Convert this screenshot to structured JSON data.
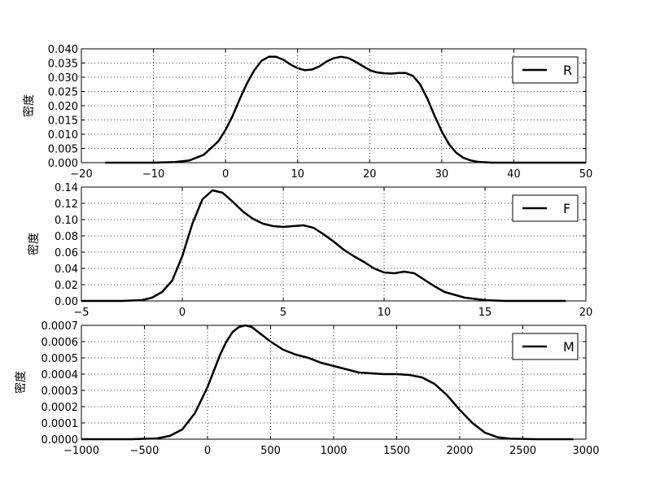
{
  "chart_data": [
    {
      "type": "line",
      "ylabel": "密度",
      "xlim": [
        -20,
        50
      ],
      "ylim": [
        0,
        0.04
      ],
      "xticks": [
        "−20",
        "−10",
        "0",
        "10",
        "20",
        "30",
        "40",
        "50"
      ],
      "yticks": [
        "0.000",
        "0.005",
        "0.010",
        "0.015",
        "0.020",
        "0.025",
        "0.030",
        "0.035",
        "0.040"
      ],
      "grid": true,
      "legend_position": "top-right",
      "series": [
        {
          "name": "R",
          "color": "#000000",
          "x": [
            -16.7,
            -10,
            -7,
            -5,
            -3,
            -1,
            0,
            1,
            2,
            3,
            4,
            5,
            6,
            7,
            8,
            9,
            10,
            11,
            12,
            13,
            14,
            15,
            16,
            17,
            18,
            19,
            20,
            21,
            22,
            23,
            24,
            25,
            26,
            27,
            28,
            29,
            30,
            31,
            32,
            33,
            34,
            35,
            37,
            40,
            45,
            50
          ],
          "y": [
            0.0,
            0.0,
            0.0002,
            0.0008,
            0.0028,
            0.0075,
            0.0115,
            0.0165,
            0.0225,
            0.028,
            0.0325,
            0.0358,
            0.0372,
            0.0372,
            0.0362,
            0.0345,
            0.0332,
            0.0325,
            0.0327,
            0.0338,
            0.0355,
            0.0367,
            0.0372,
            0.0368,
            0.0355,
            0.034,
            0.0325,
            0.0317,
            0.0314,
            0.0313,
            0.0315,
            0.0315,
            0.0305,
            0.0275,
            0.0225,
            0.0165,
            0.011,
            0.0065,
            0.0035,
            0.0017,
            0.0008,
            0.0003,
            0.0,
            0.0,
            0.0,
            0.0
          ]
        }
      ]
    },
    {
      "type": "line",
      "ylabel": "密度",
      "xlim": [
        -5,
        20
      ],
      "ylim": [
        0,
        0.14
      ],
      "xticks": [
        "−5",
        "0",
        "5",
        "10",
        "15",
        "20"
      ],
      "yticks": [
        "0.00",
        "0.02",
        "0.04",
        "0.06",
        "0.08",
        "0.10",
        "0.12",
        "0.14"
      ],
      "grid": true,
      "legend_position": "top-right",
      "series": [
        {
          "name": "F",
          "color": "#000000",
          "x": [
            -5,
            -3,
            -2,
            -1.5,
            -1,
            -0.5,
            0,
            0.5,
            1,
            1.5,
            2,
            2.5,
            3,
            3.5,
            4,
            4.5,
            5,
            5.5,
            6,
            6.5,
            7,
            7.5,
            8,
            8.5,
            9,
            9.5,
            10,
            10.5,
            11,
            11.5,
            12,
            12.5,
            13,
            14,
            15,
            16,
            18,
            19
          ],
          "y": [
            0.0,
            0.0,
            0.001,
            0.004,
            0.011,
            0.025,
            0.055,
            0.095,
            0.125,
            0.136,
            0.133,
            0.122,
            0.11,
            0.101,
            0.095,
            0.092,
            0.091,
            0.092,
            0.093,
            0.09,
            0.082,
            0.073,
            0.063,
            0.055,
            0.048,
            0.04,
            0.035,
            0.034,
            0.036,
            0.034,
            0.026,
            0.018,
            0.011,
            0.004,
            0.001,
            0.0,
            0.0,
            0.0
          ]
        }
      ]
    },
    {
      "type": "line",
      "ylabel": "密度",
      "xlim": [
        -1000,
        3000
      ],
      "ylim": [
        0,
        0.0007
      ],
      "xticks": [
        "−1000",
        "−500",
        "0",
        "500",
        "1000",
        "1500",
        "2000",
        "2500",
        "3000"
      ],
      "yticks": [
        "0.0000",
        "0.0001",
        "0.0002",
        "0.0003",
        "0.0004",
        "0.0005",
        "0.0006",
        "0.0007"
      ],
      "grid": true,
      "legend_position": "top-right",
      "series": [
        {
          "name": "M",
          "color": "#000000",
          "x": [
            -1000,
            -600,
            -400,
            -300,
            -200,
            -100,
            0,
            50,
            100,
            150,
            200,
            250,
            300,
            350,
            400,
            500,
            600,
            700,
            800,
            900,
            1000,
            1100,
            1200,
            1300,
            1400,
            1500,
            1600,
            1700,
            1800,
            1900,
            2000,
            2100,
            2200,
            2300,
            2400,
            2600,
            2900
          ],
          "y": [
            0.0,
            0.0,
            5e-06,
            2e-05,
            6e-05,
            0.00016,
            0.00032,
            0.00042,
            0.00052,
            0.0006,
            0.00066,
            0.00069,
            0.0007,
            0.00069,
            0.00066,
            0.0006,
            0.00055,
            0.00052,
            0.0005,
            0.00047,
            0.00045,
            0.00043,
            0.00041,
            0.000405,
            0.0004,
            0.0004,
            0.000395,
            0.00038,
            0.00034,
            0.00027,
            0.00018,
            0.0001,
            4e-05,
            1.2e-05,
            3e-06,
            0.0,
            0.0
          ]
        }
      ]
    }
  ]
}
